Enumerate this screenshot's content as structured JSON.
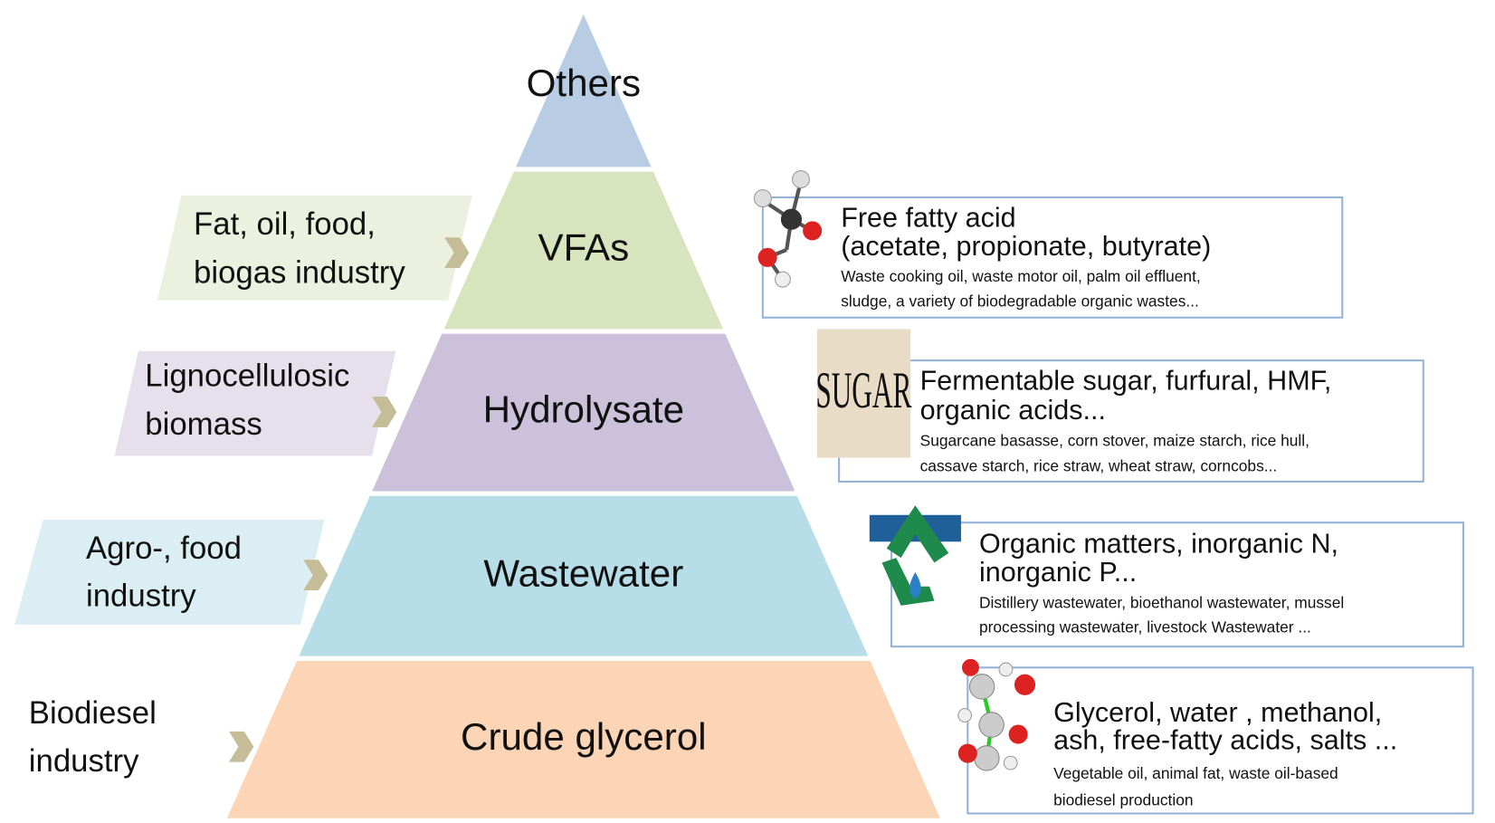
{
  "levels": [
    {
      "label": "Others"
    },
    {
      "label": "VFAs",
      "source": [
        "Fat, oil, food,",
        "biogas industry"
      ],
      "details": {
        "title": [
          "Free fatty acid",
          "(acetate, propionate, butyrate)"
        ],
        "description": [
          "Waste cooking oil, waste motor oil, palm oil effluent,",
          "sludge, a variety of biodegradable organic wastes..."
        ]
      }
    },
    {
      "label": "Hydrolysate",
      "source": [
        "Lignocellulosic",
        "biomass"
      ],
      "details": {
        "title": [
          "Fermentable sugar, furfural, HMF,",
          "organic acids..."
        ],
        "description": [
          "Sugarcane basasse, corn stover, maize starch, rice hull,",
          "cassave starch, rice straw, wheat straw, corncobs..."
        ]
      }
    },
    {
      "label": "Wastewater",
      "source": [
        "Agro-, food",
        "industry"
      ],
      "details": {
        "title": [
          "Organic matters, inorganic N,",
          "inorganic P..."
        ],
        "description": [
          "Distillery wastewater, bioethanol wastewater, mussel",
          "processing wastewater, livestock  Wastewater ..."
        ]
      }
    },
    {
      "label": "Crude glycerol",
      "source": [
        "Biodiesel",
        "industry"
      ],
      "details": {
        "title": [
          "Glycerol, water , methanol,",
          "ash, free-fatty acids, salts ..."
        ],
        "description": [
          "Vegetable oil, animal fat, waste oil-based",
          "biodiesel production"
        ]
      }
    }
  ]
}
